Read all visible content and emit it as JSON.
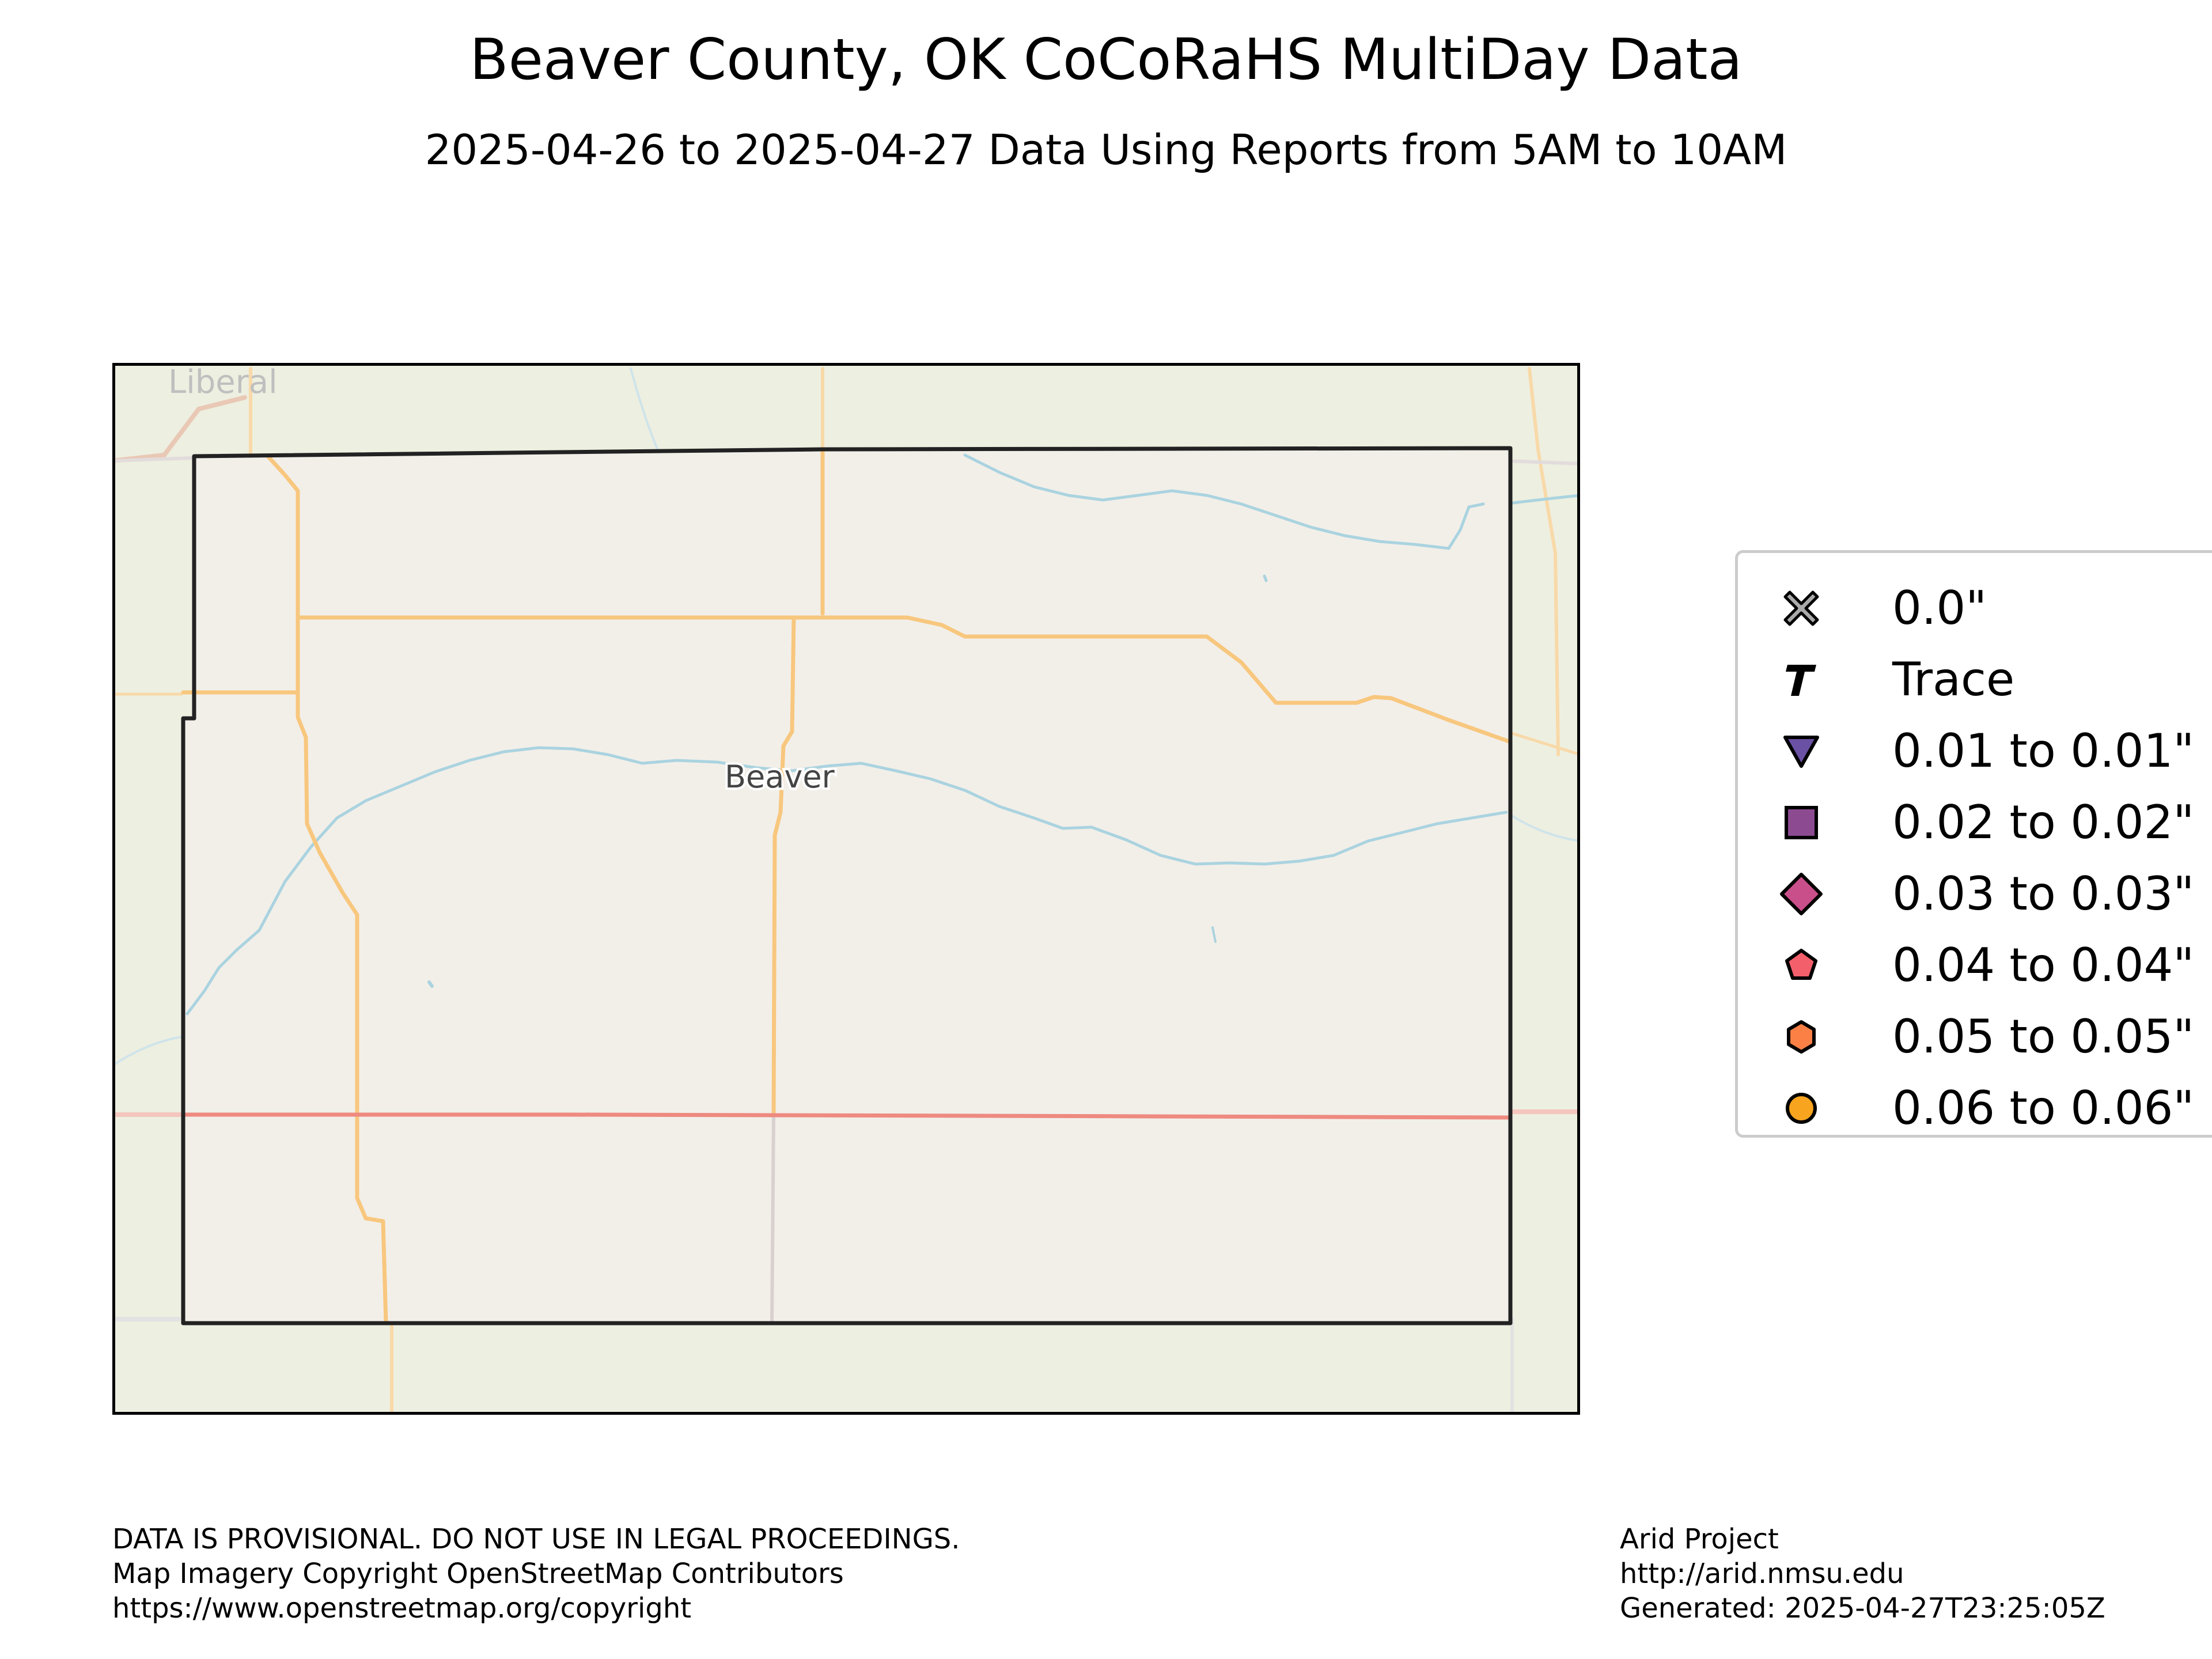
{
  "title": "Beaver County, OK CoCoRaHS MultiDay Data",
  "subtitle": "2025-04-26 to 2025-04-27 Data Using Reports from 5AM to 10AM",
  "map": {
    "place_labels": [
      "Liberal",
      "Beaver"
    ],
    "colors": {
      "background": "#edefe0",
      "county_fill": "#f2efe9",
      "county_border": "#222222",
      "road_major": "#f8c77e",
      "road_highway": "#ee8a80",
      "road_minor": "#d9d0d0",
      "water": "#aad3df"
    }
  },
  "legend": {
    "items": [
      {
        "label": "0.0\"",
        "icon": "x-marker-icon",
        "color": "#aaaaaa"
      },
      {
        "label": "Trace",
        "icon": "t-marker-icon",
        "color": "#000000"
      },
      {
        "label": "0.01 to 0.01\"",
        "icon": "triangle-down-marker-icon",
        "color": "#6a51a3"
      },
      {
        "label": "0.02 to 0.02\"",
        "icon": "square-marker-icon",
        "color": "#8c4a91"
      },
      {
        "label": "0.03 to 0.03\"",
        "icon": "diamond-marker-icon",
        "color": "#c94f8b"
      },
      {
        "label": "0.04 to 0.04\"",
        "icon": "pentagon-marker-icon",
        "color": "#f45f6c"
      },
      {
        "label": "0.05 to 0.05\"",
        "icon": "hexagon-marker-icon",
        "color": "#fb8046"
      },
      {
        "label": "0.06 to 0.06\"",
        "icon": "circle-marker-icon",
        "color": "#f8a41f"
      }
    ]
  },
  "footer_left": [
    "DATA IS PROVISIONAL. DO NOT USE IN LEGAL PROCEEDINGS.",
    "Map Imagery Copyright OpenStreetMap Contributors",
    "https://www.openstreetmap.org/copyright"
  ],
  "footer_right": [
    "Arid Project",
    "http://arid.nmsu.edu",
    "Generated: 2025-04-27T23:25:05Z"
  ]
}
